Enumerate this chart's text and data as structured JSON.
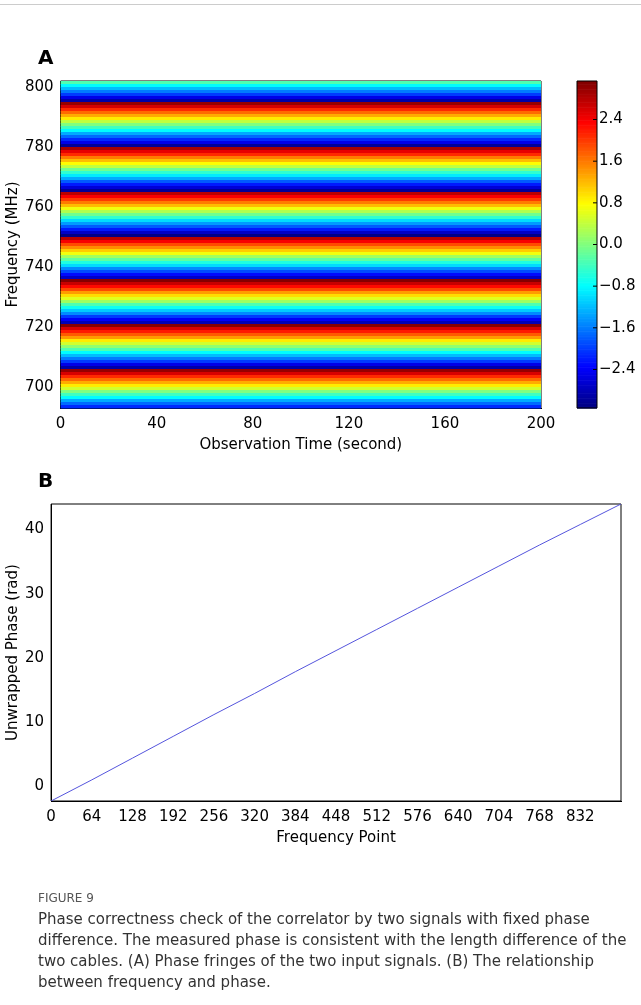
{
  "chart_data": [
    {
      "type": "heatmap",
      "title": "A",
      "xlabel": "Observation Time (second)",
      "ylabel": "Frequency (MHz)",
      "xlim": [
        0,
        200
      ],
      "xticks": [
        0,
        40,
        80,
        120,
        160,
        200
      ],
      "ylim": [
        693,
        802
      ],
      "yticks": [
        700,
        720,
        740,
        760,
        780,
        800
      ],
      "clim": [
        -3.14,
        3.14
      ],
      "cticks": [
        {
          "value": -2.4,
          "label": "−2.4"
        },
        {
          "value": -1.6,
          "label": "−1.6"
        },
        {
          "value": -0.8,
          "label": "−0.8"
        },
        {
          "value": 0,
          "label": "0.0"
        },
        {
          "value": 0.8,
          "label": "0.8"
        },
        {
          "value": 1.6,
          "label": "1.6"
        },
        {
          "value": 2.4,
          "label": "2.4"
        }
      ],
      "cells": [
        [
          -0.3
        ],
        [
          -0.8
        ],
        [
          -1.2
        ],
        [
          -1.6
        ],
        [
          -2.0
        ],
        [
          -2.5
        ],
        [
          -2.9
        ],
        [
          3.0
        ],
        [
          2.6
        ],
        [
          2.1
        ],
        [
          1.7
        ],
        [
          1.3
        ],
        [
          0.9
        ],
        [
          0.4
        ],
        [
          0.0
        ],
        [
          -0.4
        ],
        [
          -0.8
        ],
        [
          -1.3
        ],
        [
          -1.7
        ],
        [
          -2.1
        ],
        [
          -2.5
        ],
        [
          -3.0
        ],
        [
          2.9
        ],
        [
          2.5
        ],
        [
          2.1
        ],
        [
          1.6
        ],
        [
          1.2
        ],
        [
          0.8
        ],
        [
          0.4
        ],
        [
          -0.1
        ],
        [
          -0.5
        ],
        [
          -0.9
        ],
        [
          -1.3
        ],
        [
          -1.8
        ],
        [
          -2.2
        ],
        [
          -2.6
        ],
        [
          -3.0
        ],
        [
          2.8
        ],
        [
          2.4
        ],
        [
          2.0
        ],
        [
          1.6
        ],
        [
          1.2
        ],
        [
          0.7
        ],
        [
          0.3
        ],
        [
          -0.1
        ],
        [
          -0.5
        ],
        [
          -1.0
        ],
        [
          -1.4
        ],
        [
          -1.8
        ],
        [
          -2.2
        ],
        [
          -2.7
        ],
        [
          -3.1
        ],
        [
          2.8
        ],
        [
          2.4
        ],
        [
          1.9
        ],
        [
          1.5
        ],
        [
          1.1
        ],
        [
          0.7
        ],
        [
          0.2
        ],
        [
          -0.2
        ],
        [
          -0.6
        ],
        [
          -1.0
        ],
        [
          -1.5
        ],
        [
          -1.9
        ],
        [
          -2.3
        ],
        [
          -2.7
        ],
        [
          3.1
        ],
        [
          2.7
        ],
        [
          2.3
        ],
        [
          1.9
        ],
        [
          1.4
        ],
        [
          1.0
        ],
        [
          0.6
        ],
        [
          0.2
        ],
        [
          -0.3
        ],
        [
          -0.7
        ],
        [
          -1.1
        ],
        [
          -1.5
        ],
        [
          -2.0
        ],
        [
          -2.4
        ],
        [
          -2.8
        ],
        [
          3.1
        ],
        [
          2.6
        ],
        [
          2.2
        ],
        [
          1.8
        ],
        [
          1.4
        ],
        [
          0.9
        ],
        [
          0.5
        ],
        [
          0.1
        ],
        [
          -0.3
        ],
        [
          -0.8
        ],
        [
          -1.2
        ],
        [
          -1.6
        ],
        [
          -2.0
        ],
        [
          -2.5
        ],
        [
          -2.9
        ],
        [
          3.0
        ],
        [
          2.6
        ],
        [
          2.1
        ],
        [
          1.7
        ],
        [
          1.3
        ],
        [
          0.9
        ],
        [
          0.5
        ],
        [
          0.0
        ],
        [
          -0.4
        ],
        [
          -0.8
        ],
        [
          -1.3
        ],
        [
          -1.7
        ],
        [
          -2.1
        ]
      ]
    },
    {
      "type": "line",
      "title": "B",
      "xlabel": "Frequency Point",
      "ylabel": "Unwrapped Phase (rad)",
      "x": [
        0,
        64,
        128,
        192,
        256,
        320,
        384,
        448,
        512,
        576,
        640,
        704,
        768,
        832,
        896
      ],
      "series": [
        {
          "color": "#5555dd",
          "values": [
            -2.4,
            0.9,
            4.3,
            7.7,
            11.1,
            14.4,
            17.8,
            21.1,
            24.4,
            27.7,
            31.0,
            34.3,
            37.6,
            40.8,
            44.0
          ]
        }
      ],
      "xlim": [
        0,
        896
      ],
      "xticks": [
        0,
        64,
        128,
        192,
        256,
        320,
        384,
        448,
        512,
        576,
        640,
        704,
        768,
        832
      ],
      "ylim": [
        -2.4,
        44
      ],
      "yticks": [
        0,
        10,
        20,
        30,
        40
      ],
      "annotations": [
        "FIGURE 9",
        "Phase correctness check of the correlator by two signals with fixed phase difference. The measured phase is consistent with the length difference of the two cables. (A) Phase fringes of the two input signals. (B) The relationship between frequency and phase."
      ]
    }
  ]
}
